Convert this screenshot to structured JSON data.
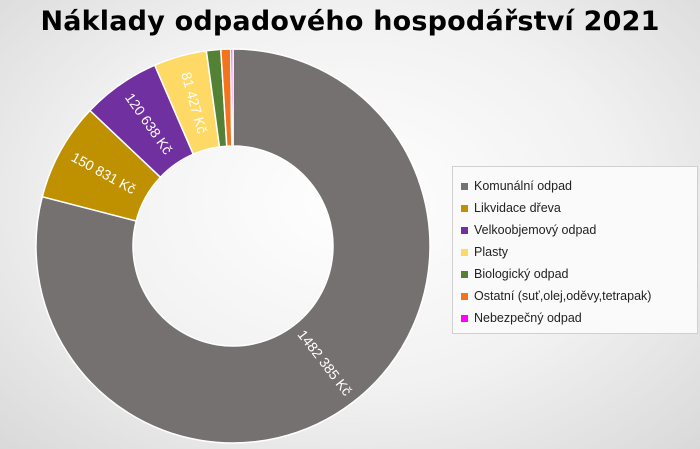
{
  "chart_data": {
    "type": "pie",
    "title": "Náklady odpadového hospodářství 2021",
    "series": [
      {
        "name": "Komunální odpad",
        "value": 1482385,
        "label": "1482 385 Kč",
        "color": "#767171"
      },
      {
        "name": "Likvidace dřeva",
        "value": 150831,
        "label": "150 831 Kč",
        "color": "#bf9000"
      },
      {
        "name": "Velkoobjemový odpad",
        "value": 120638,
        "label": "120 638 Kč",
        "color": "#7030a0"
      },
      {
        "name": "Plasty",
        "value": 81427,
        "label": "81 427 Kč",
        "color": "#ffd966"
      },
      {
        "name": "Biologický odpad",
        "value": 22000,
        "label": "",
        "color": "#548235"
      },
      {
        "name": "Ostatní (suť,olej,oděvy,tetrapak)",
        "value": 15000,
        "label": "",
        "color": "#f4731f"
      },
      {
        "name": "Nebezpečný odpad",
        "value": 3500,
        "label": "",
        "color": "#ff00ff"
      }
    ],
    "legend_position": "right"
  }
}
